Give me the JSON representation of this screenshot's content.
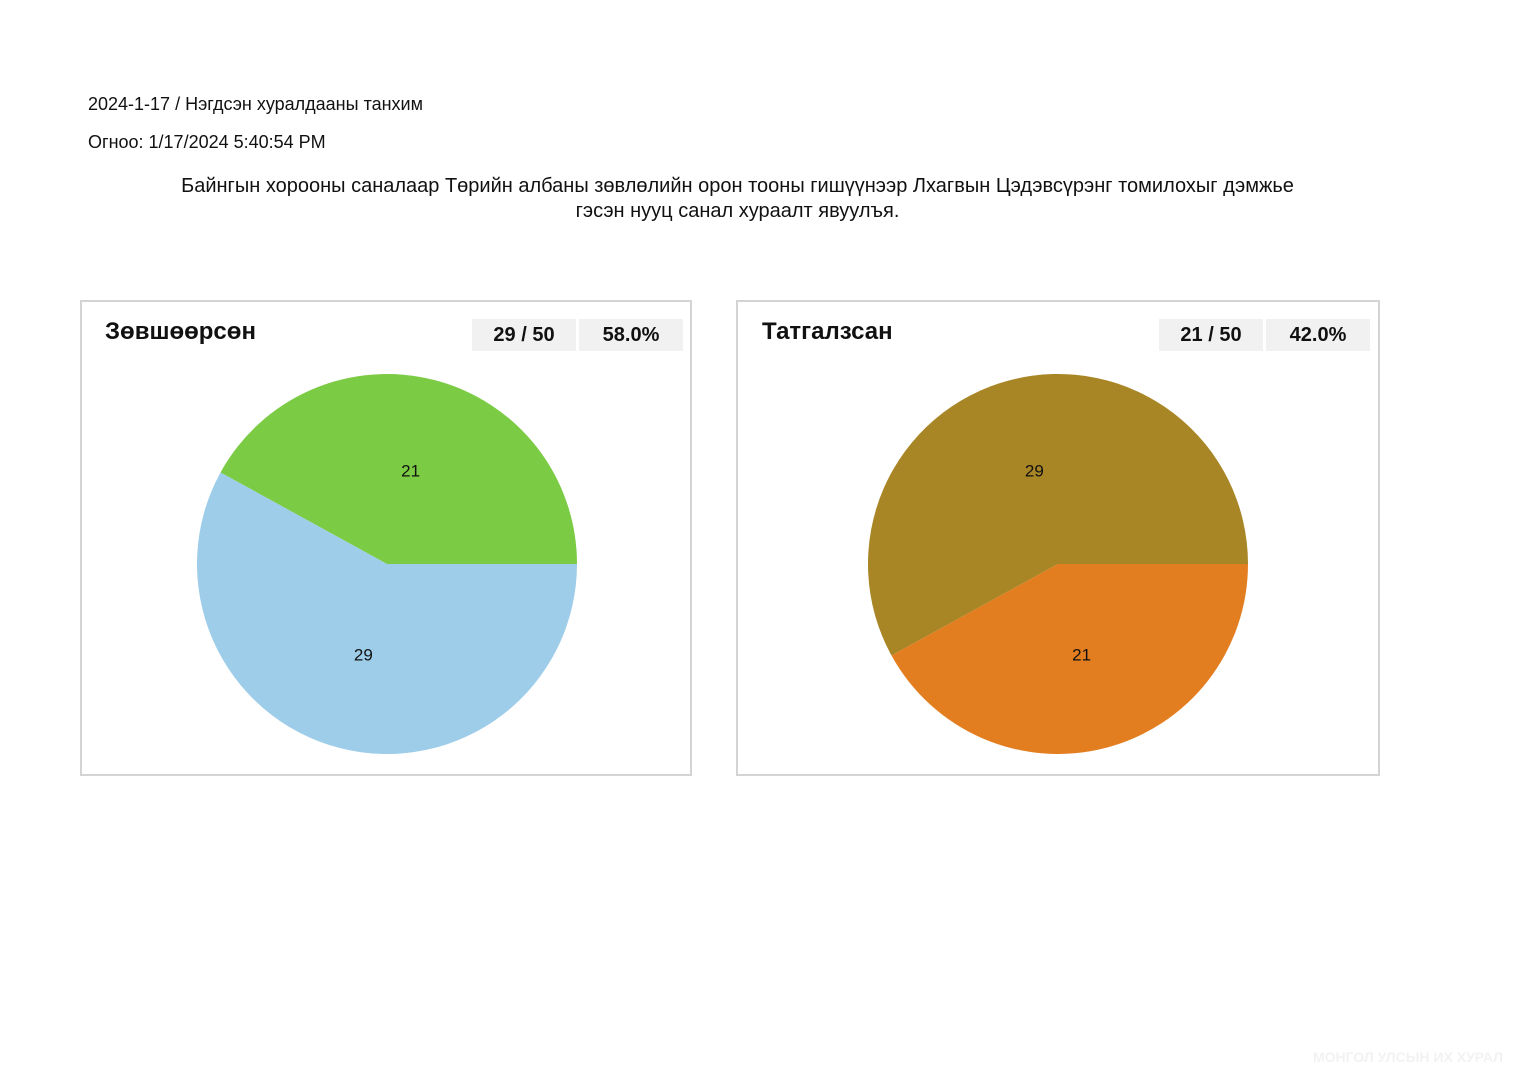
{
  "header": {
    "session": "2024-1-17 / Нэгдсэн хуралдааны танхим",
    "date": "Огноо: 1/17/2024 5:40:54 PM",
    "motion_line1": "Байнгын хорооны саналаар Төрийн албаны зөвлөлийн орон тооны гишүүнээр Лхагвын Цэдэвсүрэнг томилохыг дэмжье",
    "motion_line2": "гэсэн нууц санал хураалт явуулъя."
  },
  "panels": [
    {
      "title": "Зөвшөөрсөн",
      "count_text": "29 / 50",
      "percent_text": "58.0%"
    },
    {
      "title": "Татгалзсан",
      "count_text": "21 / 50",
      "percent_text": "42.0%"
    }
  ],
  "chart_data": [
    {
      "type": "pie",
      "title": "Зөвшөөрсөн",
      "total": 50,
      "slices": [
        {
          "label": "21",
          "value": 21,
          "color": "#7bcb44"
        },
        {
          "label": "29",
          "value": 29,
          "color": "#9ecdea"
        }
      ]
    },
    {
      "type": "pie",
      "title": "Татгалзсан",
      "total": 50,
      "slices": [
        {
          "label": "29",
          "value": 29,
          "color": "#a88525"
        },
        {
          "label": "21",
          "value": 21,
          "color": "#e37e20"
        }
      ]
    }
  ],
  "watermark": "МОНГОЛ УЛСЫН ИХ ХУРАЛ"
}
